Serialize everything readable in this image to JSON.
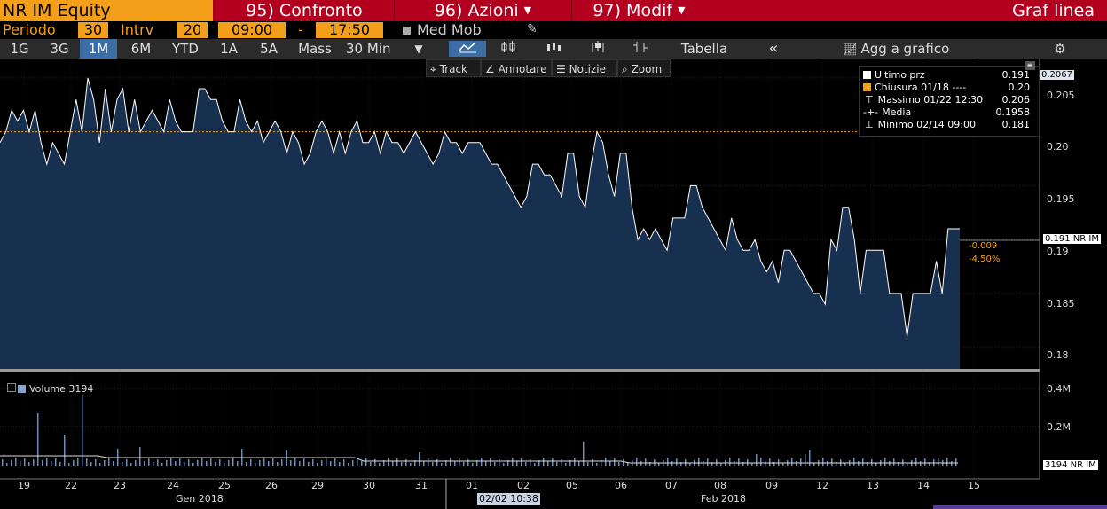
{
  "header": {
    "security": "NR IM Equity",
    "buttons": [
      {
        "label": "95) Confronto"
      },
      {
        "label": "96) Azioni"
      },
      {
        "label": "97) Modif"
      }
    ],
    "view_title": "Graf linea"
  },
  "period": {
    "periodo_label": "Periodo",
    "periodo_value": "30",
    "intrv_label": "Intrv",
    "intrv_value": "20",
    "start_time": "09:00",
    "dash": "-",
    "end_time": "17:50",
    "med_mob": "Med Mob"
  },
  "toolbar": {
    "ranges": [
      "1G",
      "3G",
      "1M",
      "6M",
      "YTD",
      "1A",
      "5A",
      "Mass"
    ],
    "active_range": "1M",
    "interval": "30 Min",
    "tabella": "Tabella",
    "collapse": "«",
    "add_to_chart": "Agg a grafico",
    "settings": "⚙"
  },
  "tools": {
    "track": "Track",
    "annotate": "Annotare",
    "news": "Notizie",
    "zoom": "Zoom"
  },
  "legend": {
    "last": {
      "label": "Ultimo prz",
      "value": "0.191",
      "color": "#ffffff"
    },
    "close": {
      "label": "Chiusura 01/18",
      "dashes": "----",
      "value": "0.20",
      "color": "#f39f1a"
    },
    "high": {
      "label": "Massimo 01/22 12:30",
      "value": "0.206"
    },
    "avg": {
      "label": "Media",
      "value": "0.1958"
    },
    "low": {
      "label": "Minimo 02/14 09:00",
      "value": "0.181"
    }
  },
  "right_tags": {
    "top": "0.2067",
    "last": "0.191 NR IM",
    "change": "-0.009",
    "change_pct": "-4.50%",
    "volume_last": "3194 NR IM"
  },
  "volume_legend": "Volume 3194",
  "crosshair_date": "02/02 10:38",
  "colors": {
    "accent": "#f39f1a",
    "header": "#b2001e",
    "area": "#173050",
    "line": "#ffffff",
    "ref": "#f39f1a"
  },
  "chart_data": {
    "type": "area",
    "reference_line": 0.2,
    "price_ylim": [
      0.178,
      0.208
    ],
    "price_ticks": [
      "0.205",
      "0.20",
      "0.195",
      "0.19",
      "0.185",
      "0.18"
    ],
    "volume_ticks": [
      "0.4M",
      "0.2M"
    ],
    "x_labels": [
      "19",
      "22",
      "23",
      "24",
      "25",
      "26",
      "29",
      "30",
      "31",
      "01",
      "02",
      "05",
      "06",
      "07",
      "08",
      "09",
      "12",
      "13",
      "14",
      "15"
    ],
    "month_labels": [
      "Gen 2018",
      "Feb 2018"
    ],
    "series": [
      {
        "values": [
          0.199,
          0.2,
          0.202,
          0.201,
          0.202,
          0.2,
          0.202,
          0.199,
          0.197,
          0.199,
          0.198,
          0.197,
          0.2,
          0.203,
          0.2,
          0.205,
          0.203,
          0.199,
          0.204,
          0.2,
          0.203,
          0.204,
          0.2,
          0.203,
          0.2,
          0.201,
          0.202,
          0.201,
          0.2,
          0.203,
          0.201,
          0.2,
          0.2,
          0.2,
          0.204,
          0.204,
          0.203,
          0.203,
          0.201,
          0.2,
          0.2,
          0.203,
          0.201,
          0.2,
          0.201,
          0.199,
          0.2,
          0.201,
          0.2,
          0.198,
          0.2,
          0.199,
          0.197,
          0.198,
          0.2,
          0.201,
          0.2,
          0.198,
          0.2,
          0.198,
          0.2,
          0.201,
          0.199,
          0.199,
          0.2,
          0.198,
          0.2,
          0.199,
          0.199,
          0.198,
          0.199,
          0.2,
          0.199,
          0.198,
          0.197,
          0.198,
          0.2,
          0.199,
          0.199,
          0.198,
          0.199,
          0.199,
          0.199,
          0.198,
          0.197,
          0.197,
          0.196,
          0.195,
          0.194,
          0.193,
          0.194,
          0.197,
          0.197,
          0.196,
          0.196,
          0.195,
          0.194,
          0.198,
          0.198,
          0.194,
          0.193,
          0.197,
          0.2,
          0.199,
          0.196,
          0.194,
          0.198,
          0.198,
          0.193,
          0.19,
          0.191,
          0.19,
          0.191,
          0.19,
          0.189,
          0.192,
          0.192,
          0.192,
          0.195,
          0.195,
          0.193,
          0.192,
          0.191,
          0.19,
          0.189,
          0.192,
          0.19,
          0.189,
          0.189,
          0.19,
          0.188,
          0.187,
          0.188,
          0.186,
          0.189,
          0.189,
          0.188,
          0.187,
          0.186,
          0.185,
          0.185,
          0.184,
          0.19,
          0.189,
          0.193,
          0.193,
          0.19,
          0.185,
          0.189,
          0.189,
          0.189,
          0.189,
          0.185,
          0.185,
          0.185,
          0.181,
          0.185,
          0.185,
          0.185,
          0.185,
          0.188,
          0.185,
          0.191,
          0.191,
          0.191
        ]
      }
    ]
  }
}
